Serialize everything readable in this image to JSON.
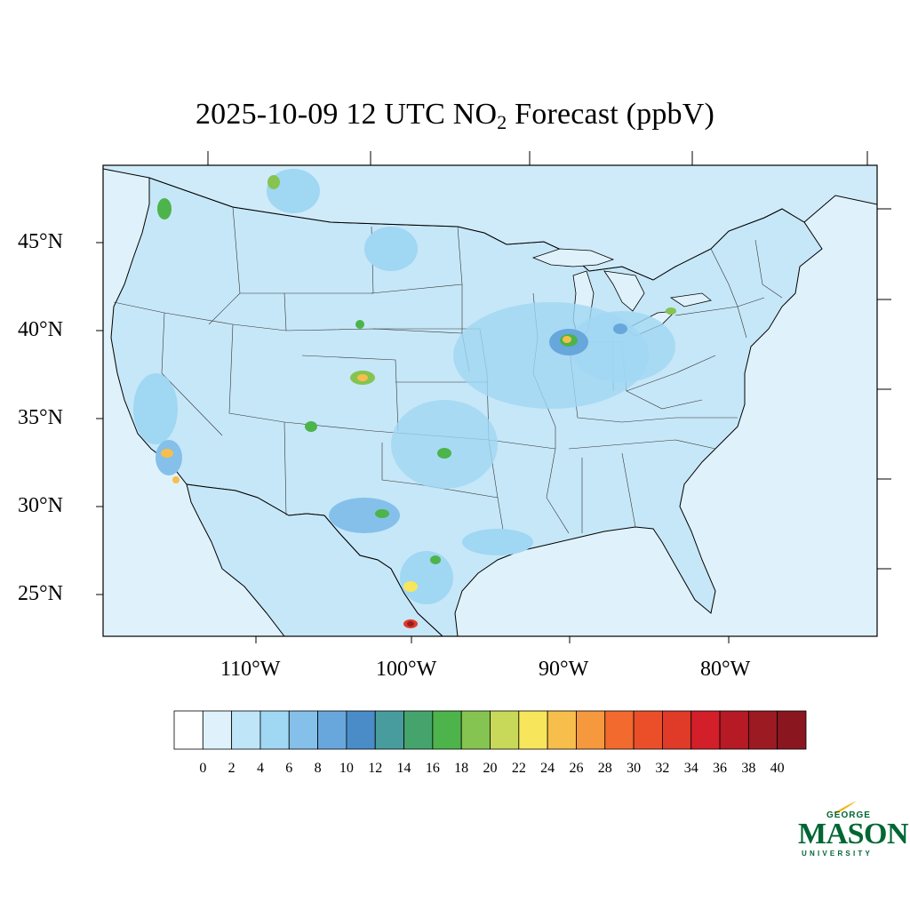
{
  "title": {
    "prefix": "2025-10-09 12 UTC NO",
    "subscript": "2",
    "suffix": " Forecast (ppbV)"
  },
  "map": {
    "lat_labels": [
      "45°N",
      "40°N",
      "35°N",
      "30°N",
      "25°N"
    ],
    "lon_labels": [
      "110°W",
      "100°W",
      "90°W",
      "80°W"
    ],
    "ocean_color": "#dff2fb",
    "land_base_color": "#c6e7f8"
  },
  "colorbar": {
    "labels": [
      "0",
      "2",
      "4",
      "6",
      "8",
      "10",
      "12",
      "14",
      "16",
      "18",
      "20",
      "22",
      "24",
      "26",
      "28",
      "30",
      "32",
      "34",
      "36",
      "38",
      "40"
    ],
    "colors": [
      "#ffffff",
      "#dff2fb",
      "#bfe6f8",
      "#a0d7f3",
      "#84c0ea",
      "#68a7dc",
      "#4a8cc8",
      "#489c9e",
      "#45a46c",
      "#4cb44a",
      "#86c451",
      "#c8d95a",
      "#f7e65c",
      "#f7be4c",
      "#f6983e",
      "#f26a2d",
      "#ea4f2a",
      "#e03a28",
      "#d21f2a",
      "#b51a25",
      "#9c1a22",
      "#8a1720"
    ]
  },
  "logo": {
    "top": "GEORGE",
    "main": "MASON",
    "bottom": "UNIVERSITY"
  }
}
